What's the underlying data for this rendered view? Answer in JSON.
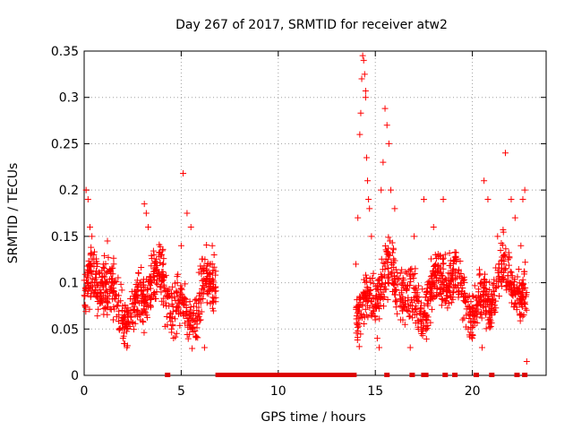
{
  "chart_data": {
    "type": "scatter",
    "title": "Day 267 of 2017, SRMTID for receiver atw2",
    "xlabel": "GPS time / hours",
    "ylabel": "SRMTID / TECUs",
    "xlim": [
      0,
      23.8
    ],
    "ylim": [
      0,
      0.35
    ],
    "xticks": [
      0,
      5,
      10,
      15,
      20
    ],
    "yticks": [
      0,
      0.05,
      0.1,
      0.15,
      0.2,
      0.25,
      0.3,
      0.35
    ],
    "xtick_labels": [
      "0",
      "5",
      "10",
      "15",
      "20"
    ],
    "ytick_labels": [
      "0",
      "0.05",
      "0.1",
      "0.15",
      "0.2",
      "0.25",
      "0.3",
      "0.35"
    ],
    "grid": true,
    "marker": "+",
    "color": "#ff0000",
    "series": [
      {
        "name": "SRMTID",
        "segments": [
          {
            "start": 0.0,
            "end": 6.8,
            "level": 0.085,
            "spread": 0.03
          },
          {
            "start": 14.0,
            "end": 22.8,
            "level": 0.09,
            "spread": 0.03
          }
        ],
        "points": [
          {
            "x": 0.1,
            "y": 0.2
          },
          {
            "x": 0.2,
            "y": 0.19
          },
          {
            "x": 0.3,
            "y": 0.16
          },
          {
            "x": 0.4,
            "y": 0.15
          },
          {
            "x": 0.5,
            "y": 0.13
          },
          {
            "x": 0.8,
            "y": 0.11
          },
          {
            "x": 1.0,
            "y": 0.12
          },
          {
            "x": 1.2,
            "y": 0.145
          },
          {
            "x": 1.5,
            "y": 0.06
          },
          {
            "x": 1.8,
            "y": 0.05
          },
          {
            "x": 2.0,
            "y": 0.04
          },
          {
            "x": 2.2,
            "y": 0.03
          },
          {
            "x": 2.5,
            "y": 0.07
          },
          {
            "x": 2.9,
            "y": 0.06
          },
          {
            "x": 3.1,
            "y": 0.185
          },
          {
            "x": 3.2,
            "y": 0.175
          },
          {
            "x": 3.3,
            "y": 0.16
          },
          {
            "x": 3.6,
            "y": 0.13
          },
          {
            "x": 4.0,
            "y": 0.08
          },
          {
            "x": 4.5,
            "y": 0.05
          },
          {
            "x": 4.8,
            "y": 0.1
          },
          {
            "x": 5.0,
            "y": 0.14
          },
          {
            "x": 5.1,
            "y": 0.218
          },
          {
            "x": 5.3,
            "y": 0.175
          },
          {
            "x": 5.5,
            "y": 0.16
          },
          {
            "x": 5.8,
            "y": 0.07
          },
          {
            "x": 6.0,
            "y": 0.06
          },
          {
            "x": 6.2,
            "y": 0.03
          },
          {
            "x": 6.5,
            "y": 0.12
          },
          {
            "x": 6.6,
            "y": 0.14
          },
          {
            "x": 14.0,
            "y": 0.12
          },
          {
            "x": 14.1,
            "y": 0.17
          },
          {
            "x": 14.2,
            "y": 0.26
          },
          {
            "x": 14.25,
            "y": 0.283
          },
          {
            "x": 14.3,
            "y": 0.32
          },
          {
            "x": 14.35,
            "y": 0.345
          },
          {
            "x": 14.4,
            "y": 0.34
          },
          {
            "x": 14.45,
            "y": 0.325
          },
          {
            "x": 14.5,
            "y": 0.3
          },
          {
            "x": 14.5,
            "y": 0.307
          },
          {
            "x": 14.55,
            "y": 0.235
          },
          {
            "x": 14.6,
            "y": 0.21
          },
          {
            "x": 14.65,
            "y": 0.19
          },
          {
            "x": 14.7,
            "y": 0.18
          },
          {
            "x": 14.8,
            "y": 0.15
          },
          {
            "x": 14.9,
            "y": 0.11
          },
          {
            "x": 15.0,
            "y": 0.06
          },
          {
            "x": 15.1,
            "y": 0.04
          },
          {
            "x": 15.2,
            "y": 0.03
          },
          {
            "x": 15.3,
            "y": 0.2
          },
          {
            "x": 15.4,
            "y": 0.23
          },
          {
            "x": 15.5,
            "y": 0.288
          },
          {
            "x": 15.6,
            "y": 0.27
          },
          {
            "x": 15.7,
            "y": 0.25
          },
          {
            "x": 15.8,
            "y": 0.2
          },
          {
            "x": 16.0,
            "y": 0.18
          },
          {
            "x": 16.3,
            "y": 0.06
          },
          {
            "x": 16.8,
            "y": 0.03
          },
          {
            "x": 17.0,
            "y": 0.15
          },
          {
            "x": 17.5,
            "y": 0.19
          },
          {
            "x": 18.0,
            "y": 0.16
          },
          {
            "x": 18.5,
            "y": 0.19
          },
          {
            "x": 19.0,
            "y": 0.09
          },
          {
            "x": 19.5,
            "y": 0.06
          },
          {
            "x": 20.0,
            "y": 0.04
          },
          {
            "x": 20.5,
            "y": 0.03
          },
          {
            "x": 20.6,
            "y": 0.21
          },
          {
            "x": 20.8,
            "y": 0.19
          },
          {
            "x": 21.3,
            "y": 0.15
          },
          {
            "x": 21.5,
            "y": 0.12
          },
          {
            "x": 21.7,
            "y": 0.24
          },
          {
            "x": 22.0,
            "y": 0.19
          },
          {
            "x": 22.2,
            "y": 0.17
          },
          {
            "x": 22.5,
            "y": 0.14
          },
          {
            "x": 22.6,
            "y": 0.19
          },
          {
            "x": 22.7,
            "y": 0.2
          },
          {
            "x": 22.8,
            "y": 0.015
          }
        ]
      }
    ],
    "zero_points_x": [
      4.3,
      6.9,
      7.1,
      7.3,
      7.5,
      7.7,
      7.9,
      8.1,
      8.3,
      8.5,
      8.7,
      8.9,
      9.1,
      9.3,
      9.5,
      9.7,
      9.9,
      10.1,
      10.3,
      10.5,
      10.7,
      10.9,
      11.1,
      11.3,
      11.5,
      11.7,
      11.9,
      12.1,
      12.3,
      12.5,
      12.7,
      12.9,
      13.1,
      13.3,
      13.5,
      13.7,
      13.9,
      15.6,
      16.9,
      17.5,
      17.6,
      18.6,
      19.1,
      20.2,
      21.0,
      22.3,
      22.7
    ]
  }
}
